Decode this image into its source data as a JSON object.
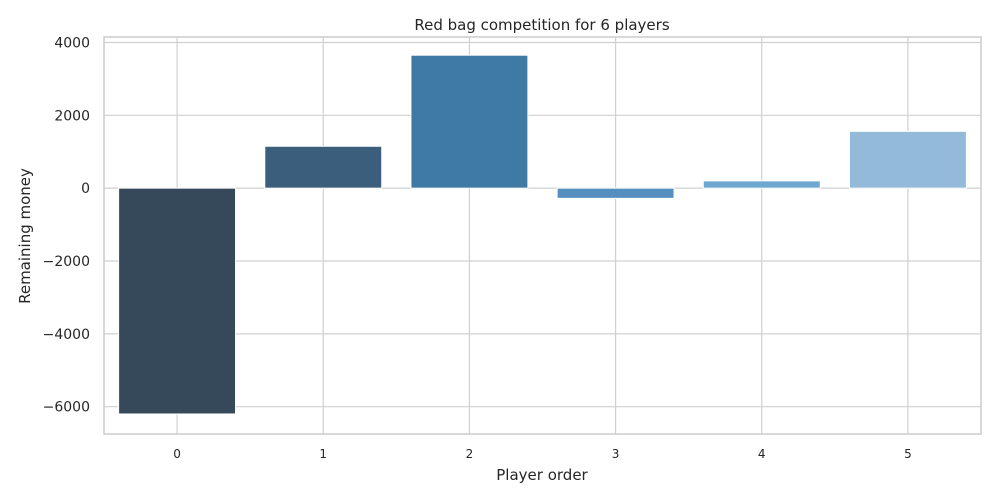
{
  "chart_data": {
    "type": "bar",
    "title": "Red bag competition for 6 players",
    "xlabel": "Player order",
    "ylabel": "Remaining money",
    "categories": [
      "0",
      "1",
      "2",
      "3",
      "4",
      "5"
    ],
    "values": [
      -6200,
      1150,
      3650,
      -280,
      200,
      1560
    ],
    "ylim": [
      -6750,
      4150
    ],
    "yticks": [
      -6000,
      -4000,
      -2000,
      0,
      2000,
      4000
    ],
    "ytick_labels": [
      "−6000",
      "−4000",
      "−2000",
      "0",
      "2000",
      "4000"
    ],
    "grid": true,
    "legend": "none",
    "colors": [
      "#35495a",
      "#3a5e7b",
      "#3e7aa3",
      "#548fc0",
      "#6ea7d0",
      "#93bbd9"
    ],
    "grid_color": "#d0d0d0",
    "spine_color": "#cccccc"
  }
}
